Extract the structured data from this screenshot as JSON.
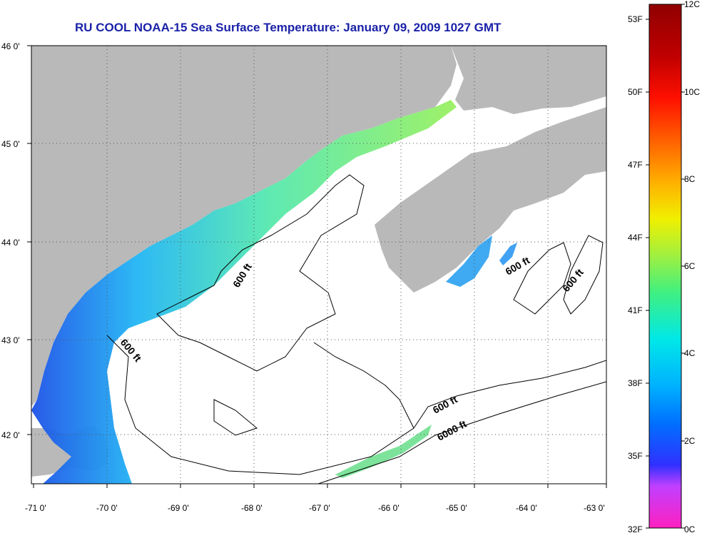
{
  "title": "RU COOL  NOAA-15  Sea Surface Temperature:  January 09, 2009 1027 GMT",
  "map": {
    "longitude_ticks": [
      "-71 0'",
      "-70 0'",
      "-69 0'",
      "-68 0'",
      "-67 0'",
      "-66 0'",
      "-65 0'",
      "-64 0'",
      "-63 0'"
    ],
    "latitude_ticks": [
      "46 0'",
      "45 0'",
      "44 0'",
      "43 0'",
      "42 0'"
    ],
    "contour_labels": [
      "600 ft",
      "600 ft",
      "600 ft",
      "600 ft",
      "600 ft",
      "6000 ft"
    ],
    "colors": {
      "land": "#b9b9b9",
      "ocean_no_data": "#ffffff",
      "contour": "#000000"
    }
  },
  "colorbar": {
    "fahrenheit_labels": [
      "53F",
      "50F",
      "47F",
      "44F",
      "41F",
      "38F",
      "35F",
      "32F"
    ],
    "celsius_labels": [
      "12C",
      "10C",
      "8C",
      "6C",
      "4C",
      "2C",
      "0C"
    ],
    "gradient": [
      "#ff20c0",
      "#c040ff",
      "#3030ff",
      "#0070ff",
      "#00b0ff",
      "#00e8e8",
      "#40f080",
      "#a0f040",
      "#f0f000",
      "#ffb000",
      "#ff6000",
      "#ff1000",
      "#c00000",
      "#900000"
    ]
  }
}
